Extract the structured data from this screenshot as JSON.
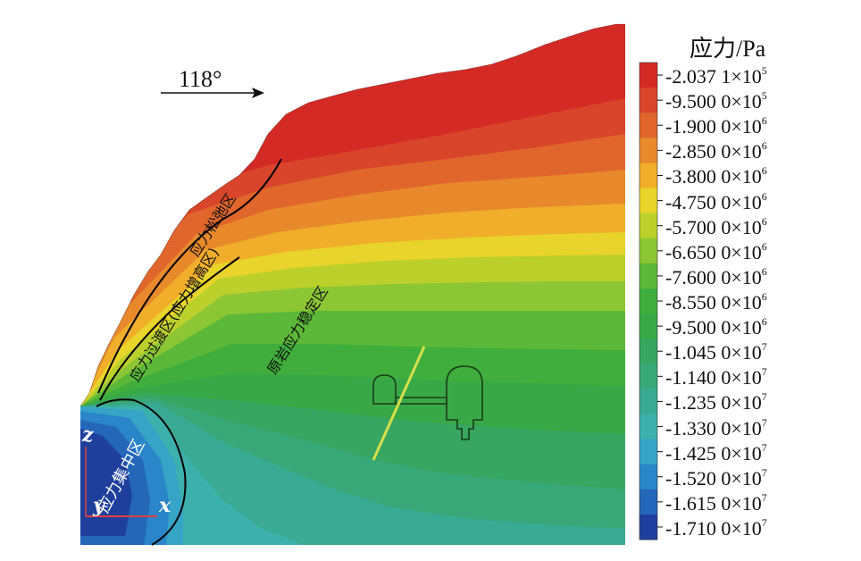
{
  "legend": {
    "title": "应力/Pa",
    "entries": [
      {
        "mantissa": "-2.037 1",
        "exp": "5",
        "color": "#d42a26"
      },
      {
        "mantissa": "-9.500 0",
        "exp": "5",
        "color": "#d8452a"
      },
      {
        "mantissa": "-1.900 0",
        "exp": "6",
        "color": "#e0662c"
      },
      {
        "mantissa": "-2.850 0",
        "exp": "6",
        "color": "#e8892c"
      },
      {
        "mantissa": "-3.800 0",
        "exp": "6",
        "color": "#f0ae2a"
      },
      {
        "mantissa": "-4.750 0",
        "exp": "6",
        "color": "#e8d42a"
      },
      {
        "mantissa": "-5.700 0",
        "exp": "6",
        "color": "#bcd02c"
      },
      {
        "mantissa": "-6.650 0",
        "exp": "6",
        "color": "#8cc634"
      },
      {
        "mantissa": "-7.600 0",
        "exp": "6",
        "color": "#5cb838"
      },
      {
        "mantissa": "-8.550 0",
        "exp": "6",
        "color": "#3fae3c"
      },
      {
        "mantissa": "-9.500 0",
        "exp": "6",
        "color": "#38a846"
      },
      {
        "mantissa": "-1.045 0",
        "exp": "7",
        "color": "#36a660"
      },
      {
        "mantissa": "-1.140 0",
        "exp": "7",
        "color": "#38a878"
      },
      {
        "mantissa": "-1.235 0",
        "exp": "7",
        "color": "#3aaa94"
      },
      {
        "mantissa": "-1.330 0",
        "exp": "7",
        "color": "#3cb0ac"
      },
      {
        "mantissa": "-1.425 0",
        "exp": "7",
        "color": "#36a4c6"
      },
      {
        "mantissa": "-1.520 0",
        "exp": "7",
        "color": "#2a86c8"
      },
      {
        "mantissa": "-1.615 0",
        "exp": "7",
        "color": "#2466b8"
      },
      {
        "mantissa": "-1.710 0",
        "exp": "7",
        "color": "#1e3f9c"
      }
    ]
  },
  "annotations": {
    "angle": "118°",
    "zone_relaxation": "应力松弛区",
    "zone_transition": "应力过渡区(应力增高区)",
    "zone_stable": "原岩应力稳定区",
    "zone_concentration": "应力集中区"
  },
  "axes": {
    "z": "z",
    "y": "y",
    "x": "x"
  }
}
